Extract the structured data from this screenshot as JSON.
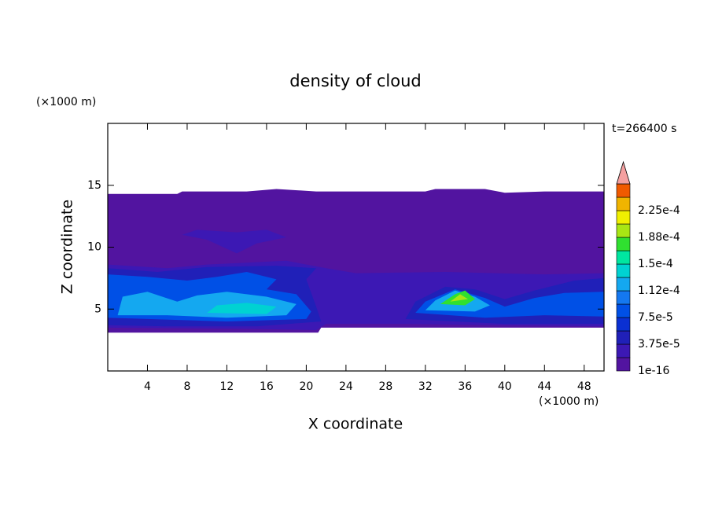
{
  "chart_data": {
    "type": "contour",
    "title": "density of cloud",
    "xlabel": "X coordinate",
    "ylabel": "Z coordinate",
    "x_unit": "(×1000 m)",
    "y_unit": "(×1000 m)",
    "annotation": "t=266400 s",
    "xlim": [
      0,
      50
    ],
    "ylim": [
      0,
      20
    ],
    "xticks": [
      4,
      8,
      12,
      16,
      20,
      24,
      28,
      32,
      36,
      40,
      44,
      48
    ],
    "yticks": [
      5,
      10,
      15
    ],
    "levels": [
      1e-16,
      1.875e-05,
      {
        "value": 3.75e-05,
        "label": "3.75e-5"
      },
      5.625e-05,
      {
        "value": 7.5e-05,
        "label": "7.5e-5"
      },
      9.375e-05,
      {
        "value": 0.000112,
        "label": "1.12e-4"
      },
      0.00013125,
      {
        "value": 0.00015,
        "label": "1.5e-4"
      },
      0.00016875,
      {
        "value": 0.000188,
        "label": "1.88e-4"
      },
      0.00020625,
      {
        "value": 0.000225,
        "label": "2.25e-4"
      },
      0.00024375
    ],
    "colors": [
      "#5214a0",
      "#3c18b4",
      "#2020b8",
      "#0a30d2",
      "#0050e6",
      "#1478f0",
      "#14a8f0",
      "#00d2d2",
      "#00e6a0",
      "#30e030",
      "#a8e614",
      "#f0f000",
      "#f0b400",
      "#f05a00"
    ],
    "extend_color": "#f4a0a0"
  }
}
